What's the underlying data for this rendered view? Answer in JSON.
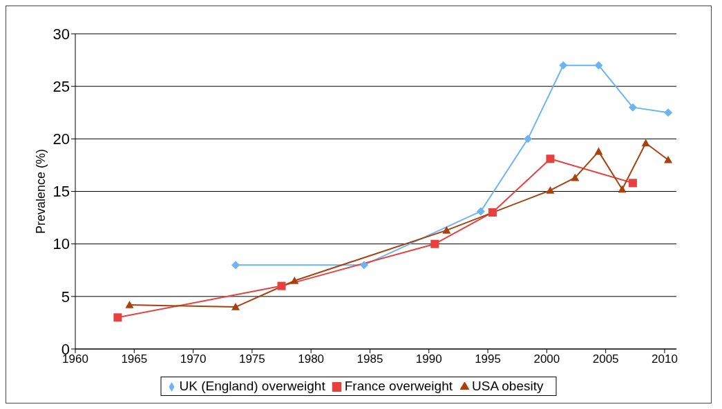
{
  "chart_data": {
    "type": "line",
    "ylabel": "Prevalence (%)",
    "xlim": [
      1960,
      2011
    ],
    "xticks": [
      1960,
      1965,
      1970,
      1975,
      1980,
      1985,
      1990,
      1995,
      2000,
      2005,
      2010
    ],
    "ylim": [
      0,
      30
    ],
    "yticks": [
      0,
      5,
      10,
      15,
      20,
      25,
      30
    ],
    "grid": "y",
    "legend": "bottom",
    "line_style": "solid",
    "series": [
      {
        "name": "UK (England) overweight",
        "color": "#6cb4f2",
        "marker": "diamond",
        "x": [
          1973.6,
          1984.5,
          1994.4,
          1998.4,
          2001.4,
          2004.4,
          2007.3,
          2010.3
        ],
        "values": [
          8,
          8,
          13.1,
          20,
          27,
          27,
          23,
          22.5
        ]
      },
      {
        "name": "France overweight",
        "color": "#e8403f",
        "marker": "square",
        "x": [
          1963.6,
          1977.5,
          1990.5,
          1995.4,
          2000.3,
          2007.3
        ],
        "values": [
          3,
          6,
          10,
          13,
          18.1,
          15.8
        ]
      },
      {
        "name": "USA obesity",
        "color": "#a8410f",
        "marker": "triangle",
        "x": [
          1964.6,
          1973.6,
          1978.6,
          1991.5,
          2000.3,
          2002.4,
          2004.4,
          2006.4,
          2008.4,
          2010.3
        ],
        "values": [
          4.2,
          4,
          6.5,
          11.3,
          15.1,
          16.3,
          18.8,
          15.2,
          19.6,
          18
        ]
      }
    ]
  }
}
